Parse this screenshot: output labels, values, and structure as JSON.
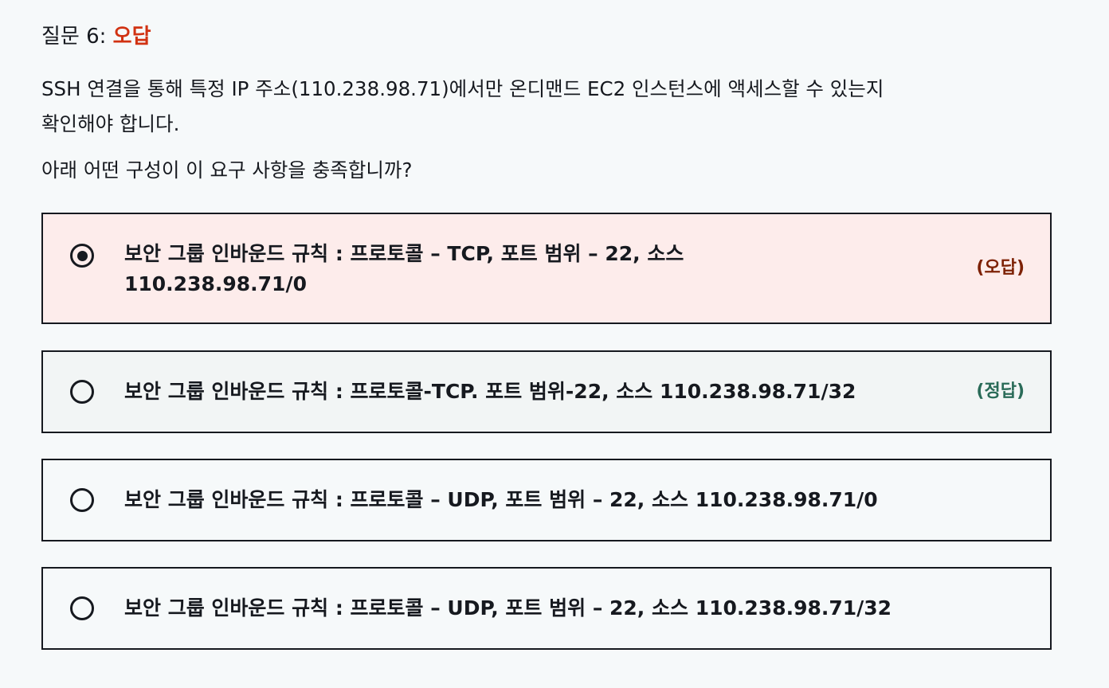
{
  "question": {
    "label": "질문 6: ",
    "result": "오답",
    "result_color": "#d13212",
    "body": "SSH 연결을 통해 특정 IP 주소(110.238.98.71)에서만 온디맨드 EC2 인스턴스에 액세스할 수 있는지 확인해야 합니다.",
    "body_line1": "SSH 연결을 통해 특정 IP 주소(110.238.98.71)에서만 온디맨드 EC2 인스턴스에 액세스할 수 있는지",
    "body_line2": "확인해야 합니다.",
    "prompt": "아래 어떤 구성이 이 요구 사항을 충족합니까?"
  },
  "options": [
    {
      "line1": "보안 그룹 인바운드 규칙 : 프로토콜 – TCP, 포트 범위 – 22, 소스",
      "line2": "110.238.98.71/0",
      "selected": true,
      "badge": "(오답)",
      "badge_color": "#7d2105",
      "bg": "#fdeceb"
    },
    {
      "line1": "보안 그룹 인바운드 규칙 : 프로토콜-TCP. 포트 범위-22, 소스 110.238.98.71/32",
      "selected": false,
      "badge": "(정답)",
      "badge_color": "#2a6b58",
      "bg": "#f2f5f5"
    },
    {
      "line1": "보안 그룹 인바운드 규칙 : 프로토콜 – UDP, 포트 범위 – 22, 소스 110.238.98.71/0",
      "selected": false
    },
    {
      "line1": "보안 그룹 인바운드 규칙 : 프로토콜 – UDP, 포트 범위 – 22, 소스 110.238.98.71/32",
      "selected": false
    }
  ]
}
